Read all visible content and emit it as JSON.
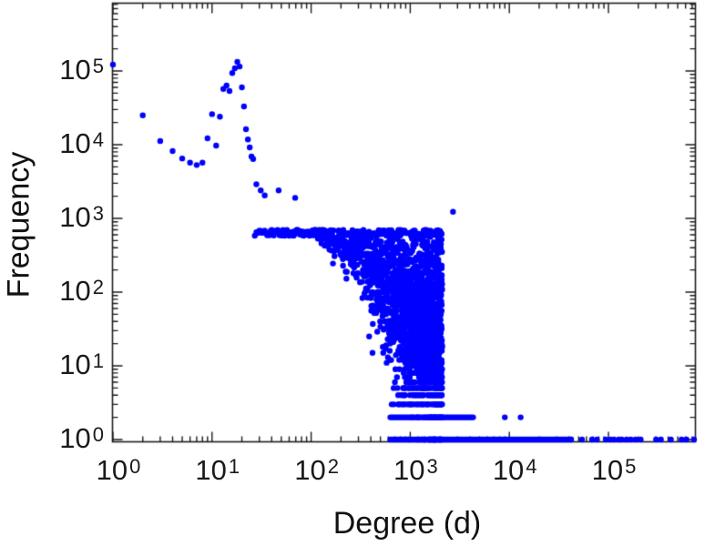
{
  "chart_data": {
    "type": "scatter",
    "title": "",
    "xlabel": "Degree (d)",
    "ylabel": "Frequency",
    "xscale": "log",
    "yscale": "log",
    "xlim": [
      1,
      750000
    ],
    "ylim": [
      1,
      840000
    ],
    "grid": false,
    "legend": null,
    "x_ticks": {
      "base": "10",
      "exponents": [
        0,
        1,
        2,
        3,
        4,
        5
      ]
    },
    "y_ticks": {
      "base": "10",
      "exponents": [
        0,
        1,
        2,
        3,
        4,
        5
      ]
    },
    "marker": {
      "color": "#0000ff"
    },
    "frame_color": "#1c1c1c",
    "head_points": [
      [
        1,
        122000
      ],
      [
        2,
        25000
      ],
      [
        3,
        11200
      ],
      [
        4,
        8200
      ],
      [
        5,
        6500
      ],
      [
        6,
        5700
      ],
      [
        7,
        5300
      ],
      [
        8,
        5700
      ],
      [
        9,
        12200
      ],
      [
        10,
        26000
      ],
      [
        11,
        9700
      ],
      [
        12,
        24000
      ],
      [
        13,
        57000
      ],
      [
        14,
        63500
      ],
      [
        15,
        53500
      ],
      [
        16,
        94000
      ],
      [
        17,
        109000
      ],
      [
        18,
        133000
      ],
      [
        19,
        115000
      ],
      [
        20,
        60000
      ],
      [
        21,
        33000
      ],
      [
        22,
        16200
      ],
      [
        23,
        11800
      ],
      [
        24,
        9200
      ],
      [
        25,
        6900
      ],
      [
        26,
        6400
      ]
    ],
    "extra_points": [
      [
        2700,
        1230
      ],
      [
        9000,
        2
      ],
      [
        13000,
        2
      ],
      [
        69,
        1900
      ],
      [
        47,
        2400
      ],
      [
        28,
        2900
      ],
      [
        31,
        2400
      ],
      [
        34,
        2050
      ]
    ],
    "cloud_model": {
      "d_range": [
        27,
        2100
      ],
      "mu_anchors": [
        [
          27,
          4300
        ],
        [
          32,
          3300
        ],
        [
          40,
          2600
        ],
        [
          51,
          1530
        ],
        [
          70,
          1150
        ],
        [
          97,
          870
        ],
        [
          130,
          660
        ],
        [
          183,
          490
        ],
        [
          250,
          370
        ],
        [
          345,
          280
        ],
        [
          450,
          205
        ],
        [
          600,
          125
        ],
        [
          800,
          78
        ],
        [
          1000,
          55
        ],
        [
          1400,
          38
        ],
        [
          2100,
          26
        ]
      ],
      "sigma_anchors": [
        [
          27,
          0.13
        ],
        [
          40,
          0.1
        ],
        [
          55,
          0.05
        ],
        [
          80,
          0.04
        ],
        [
          110,
          0.06
        ],
        [
          150,
          0.09
        ],
        [
          200,
          0.14
        ],
        [
          250,
          0.18
        ],
        [
          300,
          0.24
        ],
        [
          350,
          0.3
        ],
        [
          400,
          0.35
        ],
        [
          450,
          0.4
        ],
        [
          500,
          0.44
        ],
        [
          600,
          0.5
        ],
        [
          700,
          0.55
        ],
        [
          800,
          0.58
        ],
        [
          1000,
          0.63
        ],
        [
          1300,
          0.68
        ],
        [
          1700,
          0.71
        ],
        [
          2100,
          0.73
        ]
      ],
      "y_cap": 700
    },
    "row_model": {
      "rows": [
        {
          "y": 1,
          "d_start": 630,
          "d_end": 42000,
          "step": 1.035
        },
        {
          "y": 2,
          "d_start": 630,
          "d_end": 4400,
          "step": 1.04
        },
        {
          "y": 3,
          "d_start": 650,
          "d_end": 2000,
          "step": 1.05
        },
        {
          "y": 4,
          "d_start": 660,
          "d_end": 2000,
          "step": 1.07
        },
        {
          "y": 5,
          "d_start": 680,
          "d_end": 1900,
          "step": 1.09
        },
        {
          "y": 6,
          "d_start": 700,
          "d_end": 1800,
          "step": 1.12
        }
      ]
    },
    "tail_model": {
      "y": 1,
      "d_start": 42000,
      "d_end": 730000,
      "min_step": 1.06,
      "max_step": 1.45
    }
  }
}
